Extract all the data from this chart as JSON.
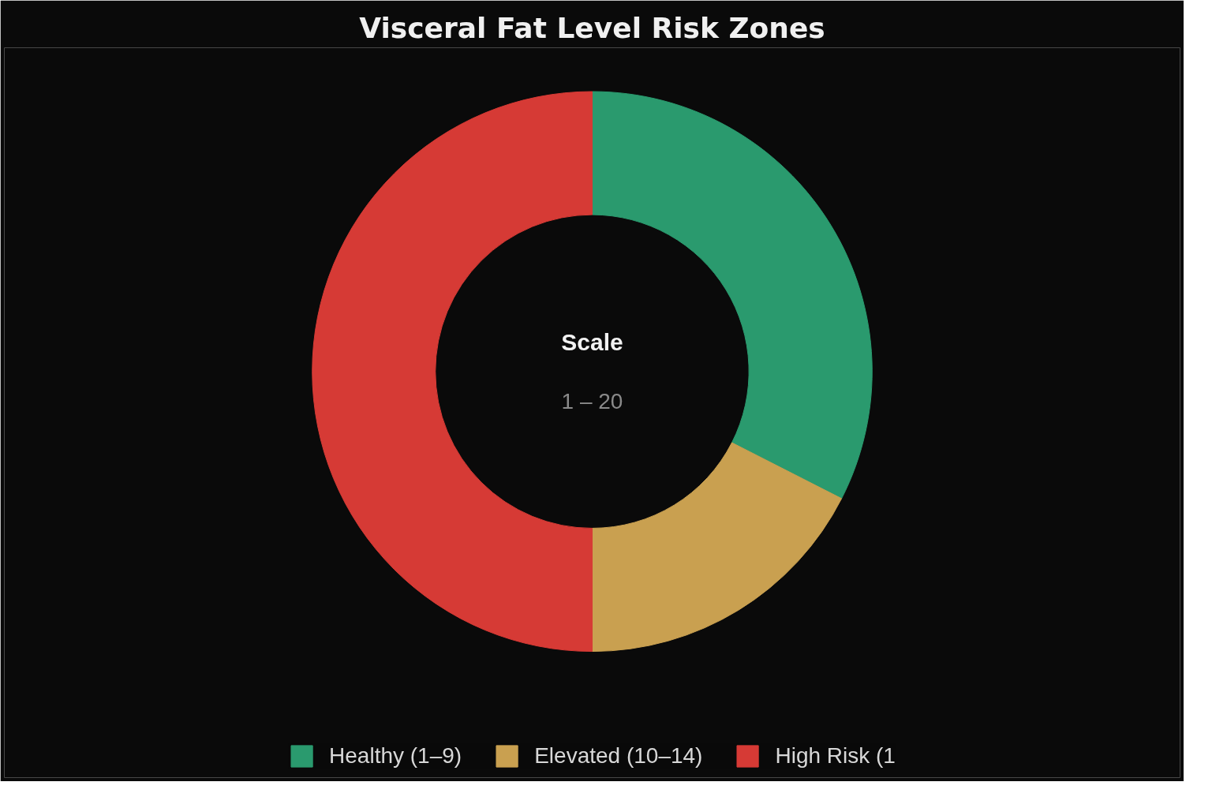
{
  "chart_data": {
    "type": "donut",
    "title": "Visceral Fat Level Risk Zones",
    "categories": [
      "Healthy (1–9)",
      "Elevated (10–14)",
      "High Risk (1"
    ],
    "values": [
      32.5,
      17.5,
      50
    ],
    "colors": [
      "#2a9a6e",
      "#c9a050",
      "#d63a35"
    ],
    "annotations": [
      "Scale",
      "1 – 20"
    ],
    "legend": "bottom"
  }
}
